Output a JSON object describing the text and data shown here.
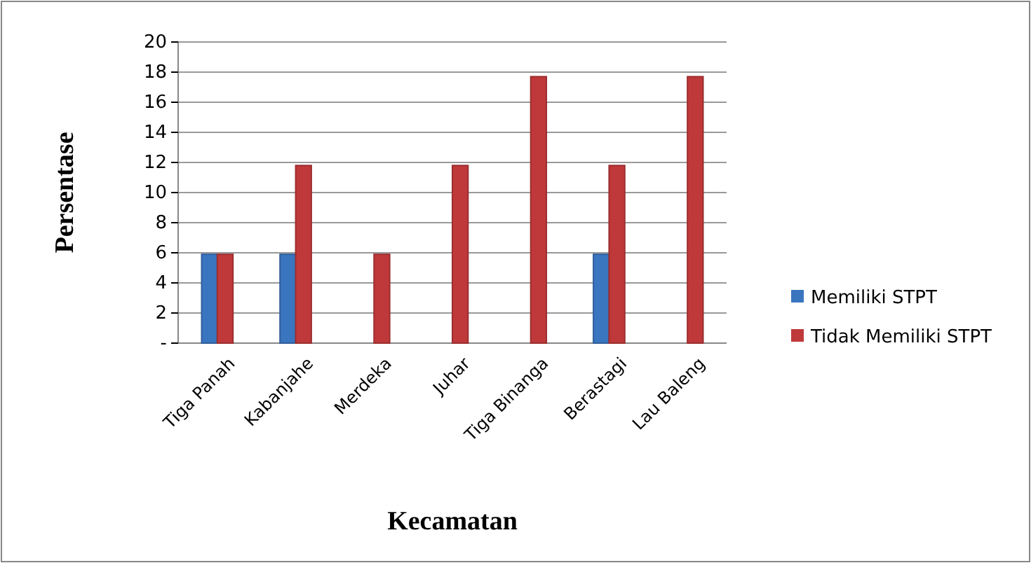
{
  "chart_data": {
    "type": "bar",
    "xlabel": "Kecamatan",
    "ylabel": "Persentase",
    "categories": [
      "Tiga Panah",
      "Kabanjahe",
      "Merdeka",
      "Juhar",
      "Tiga Binanga",
      "Berastagi",
      "Lau Baleng"
    ],
    "series": [
      {
        "name": "Memiliki STPT",
        "color": "#3a75c0",
        "values": [
          5.9,
          5.9,
          0,
          0,
          0,
          5.9,
          0
        ]
      },
      {
        "name": "Tidak Memiliki STPT",
        "color": "#c0393a",
        "values": [
          5.9,
          11.8,
          5.9,
          11.8,
          17.7,
          11.8,
          17.7
        ]
      }
    ],
    "ylim": [
      0,
      20
    ],
    "yticks": [
      {
        "value": 0,
        "label": "-"
      },
      2,
      4,
      6,
      8,
      10,
      12,
      14,
      16,
      18,
      20
    ],
    "grid": "y",
    "legend": "right"
  }
}
